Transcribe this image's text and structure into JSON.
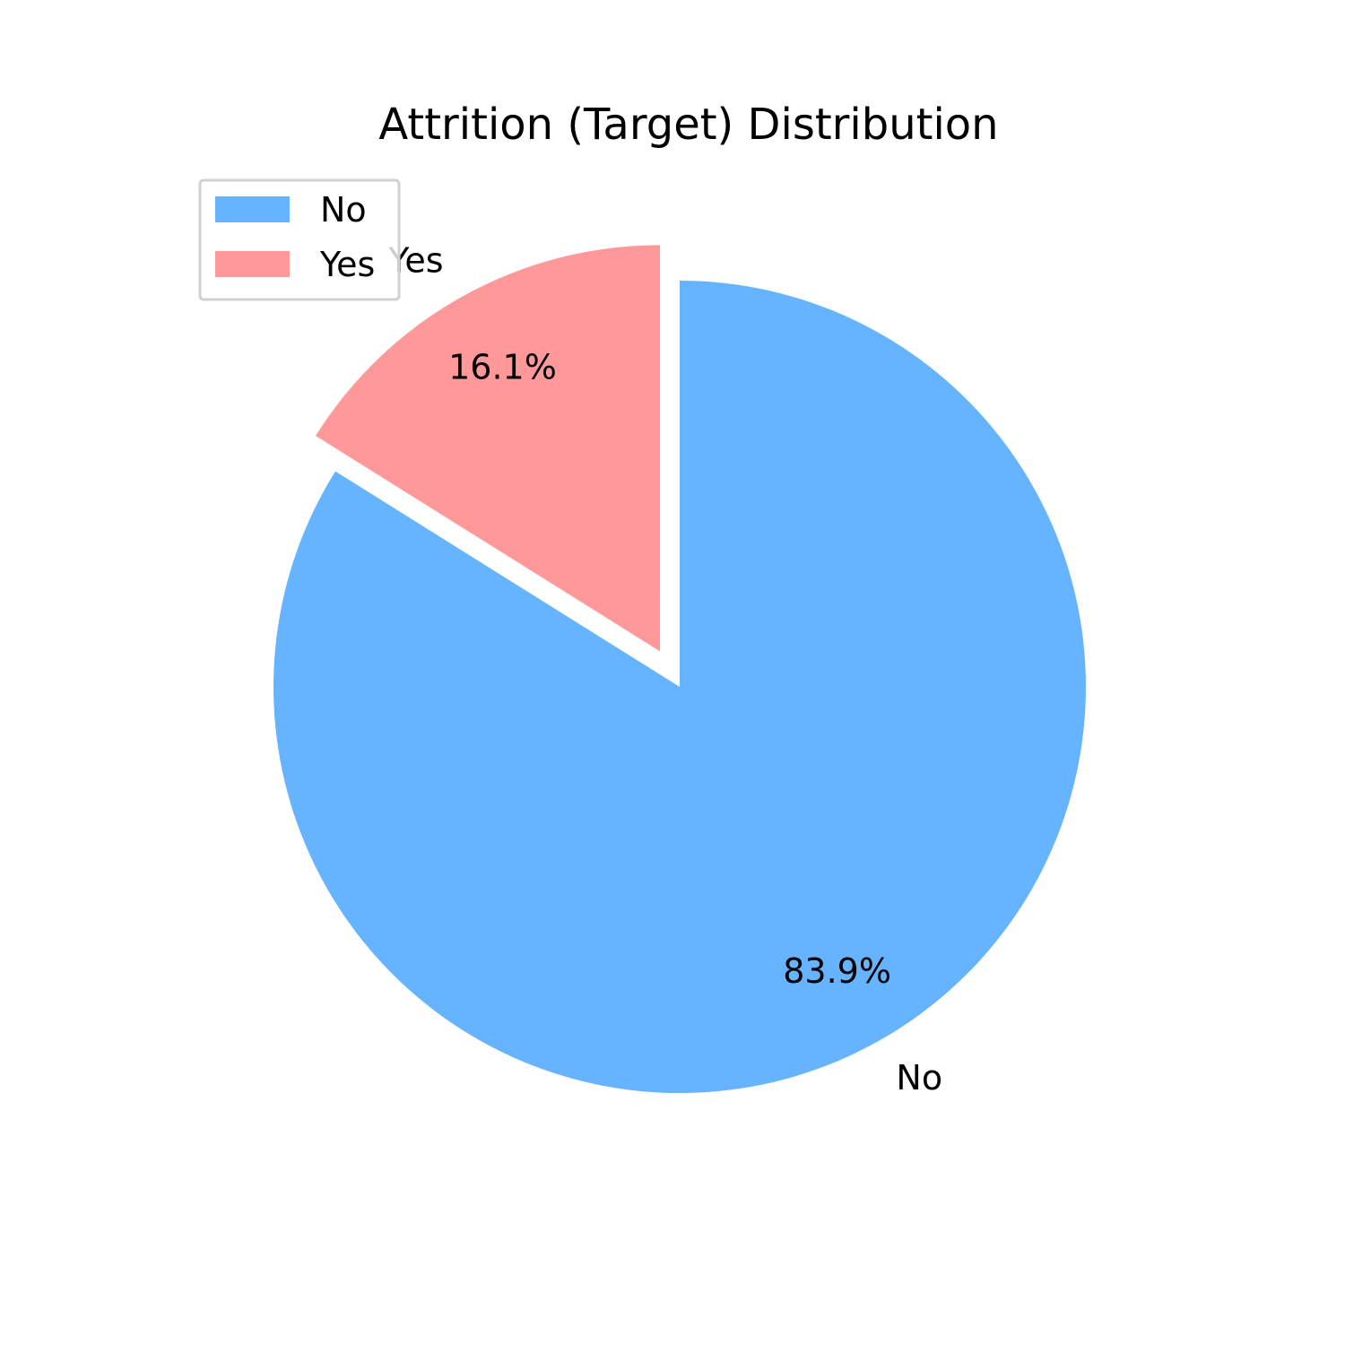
{
  "chart_data": {
    "type": "pie",
    "title": "Attrition (Target) Distribution",
    "slices": [
      {
        "label": "No",
        "value": 83.9,
        "pct_label": "83.9%",
        "color": "#66b3ff",
        "exploded": false
      },
      {
        "label": "Yes",
        "value": 16.1,
        "pct_label": "16.1%",
        "color": "#ff9999",
        "exploded": true
      }
    ],
    "start_angle_deg": 90,
    "direction": "clockwise",
    "legend": {
      "position": "upper-left",
      "entries": [
        {
          "label": "No",
          "color": "#66b3ff"
        },
        {
          "label": "Yes",
          "color": "#ff9999"
        }
      ]
    }
  }
}
